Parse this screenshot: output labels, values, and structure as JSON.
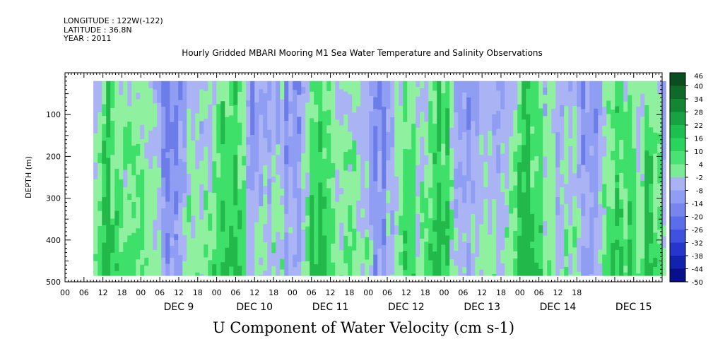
{
  "header": {
    "longitude": "LONGITUDE : 122W(-122)",
    "latitude": "LATITUDE : 36.8N",
    "year": "YEAR : 2011"
  },
  "chart_data": {
    "type": "heatmap",
    "title": "Hourly Gridded MBARI Mooring M1 Sea Water Temperature and Salinity Observations",
    "variable_label": "U Component of Water Velocity (cm s-1)",
    "ylabel": "DEPTH (m)",
    "y_axis": {
      "min": 0,
      "max": 500,
      "inverted": true,
      "ticks": [
        100,
        200,
        300,
        400,
        500
      ]
    },
    "x_axis": {
      "hour_ticks": [
        "00",
        "06",
        "12",
        "18",
        "00",
        "06",
        "12",
        "18",
        "00",
        "06",
        "12",
        "18",
        "00",
        "06",
        "12",
        "18",
        "00",
        "06",
        "12",
        "18",
        "00",
        "06",
        "12",
        "18",
        "00",
        "06",
        "12",
        "18"
      ],
      "day_labels": [
        "DEC  9",
        "DEC 10",
        "DEC 11",
        "DEC 12",
        "DEC 13",
        "DEC 14",
        "DEC 15"
      ],
      "start": "2011-12-08T00:00",
      "end": "2011-12-15T21:00"
    },
    "data_extent": {
      "time_start": "2011-12-08T09:00",
      "time_end": "2011-12-15T21:00",
      "depth_min": 20,
      "depth_max": 485
    },
    "colorbar": {
      "levels": [
        46,
        40,
        34,
        28,
        22,
        16,
        10,
        4,
        -2,
        -8,
        -14,
        -20,
        -26,
        -32,
        -38,
        -44,
        -50
      ],
      "negative_color": "#8f9ef2",
      "positive_color": "#3fe06a"
    }
  },
  "colors": {
    "green_light": "#8ff09f",
    "green": "#3fe06a",
    "green_dark": "#22b84a",
    "blue_light": "#aab4f4",
    "blue": "#8f9ef2",
    "blue_dark": "#6c7ce8"
  }
}
